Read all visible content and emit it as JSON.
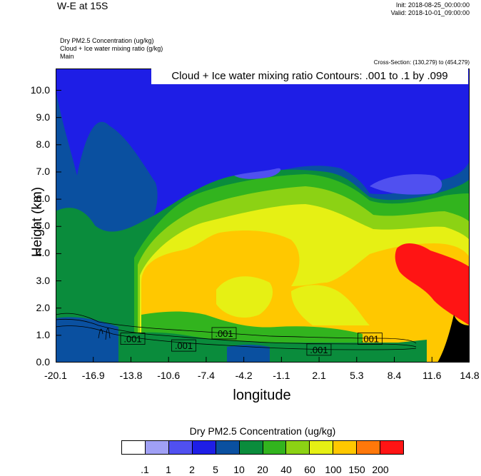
{
  "header": {
    "title": "W-E at 15S",
    "init": "Init: 2018-08-25_00:00:00",
    "valid": "Valid: 2018-10-01_09:00:00",
    "fields": [
      "Dry PM2.5 Concentration   (ug/kg)",
      "Cloud + Ice water mixing ratio   (g/kg)",
      "Main"
    ],
    "cross_section": "Cross-Section: (130,279) to (454,279)",
    "contour_info": "Cloud + Ice water mixing ratio Contours: .001 to .1 by .099"
  },
  "chart_data": {
    "type": "heatmap",
    "xlabel": "longitude",
    "ylabel": "Height (km)",
    "x_ticks": [
      "-20.1",
      "-16.9",
      "-13.8",
      "-10.6",
      "-7.4",
      "-4.2",
      "-1.1",
      "2.1",
      "5.3",
      "8.4",
      "11.6",
      "14.8"
    ],
    "y_ticks": [
      "0.0",
      "1.0",
      "2.0",
      "3.0",
      "4.0",
      "5.0",
      "6.0",
      "7.0",
      "8.0",
      "9.0",
      "10.0"
    ],
    "xlim": [
      -20.1,
      14.8
    ],
    "ylim": [
      0,
      10.8
    ],
    "colorbar": {
      "title": "Dry PM2.5 Concentration  (ug/kg)",
      "levels": [
        ".1",
        "1",
        "2",
        "5",
        "10",
        "20",
        "40",
        "60",
        "100",
        "150",
        "200"
      ],
      "colors": [
        "#ffffff",
        "#a0a0f5",
        "#5050f0",
        "#1e1ee6",
        "#0a50a0",
        "#0a8c3c",
        "#32b41e",
        "#8cd214",
        "#e6f014",
        "#ffc800",
        "#ff780a",
        "#ff1414"
      ]
    },
    "contour_labels": [
      {
        "text": ".001",
        "x": -13.6,
        "y": 0.85
      },
      {
        "text": ".001",
        "x": -9.3,
        "y": 0.6
      },
      {
        "text": ".001",
        "x": -5.9,
        "y": 1.05
      },
      {
        "text": ".001",
        "x": 2.1,
        "y": 0.45
      },
      {
        "text": ".001",
        "x": 6.4,
        "y": 0.85
      }
    ]
  }
}
